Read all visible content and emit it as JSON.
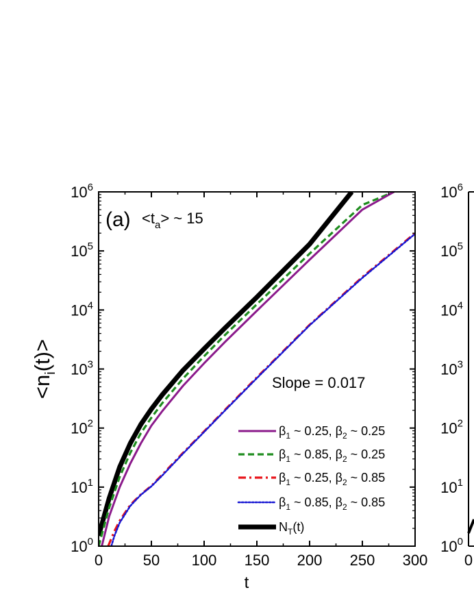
{
  "chart_data": [
    {
      "type": "line",
      "panel_label": "(a)",
      "panel_annotation": {
        "prefix": "<t",
        "subscript": "a",
        "suffix": "> ~ 15"
      },
      "slope_annotation": "Slope  = 0.017",
      "xlabel": "t",
      "ylabel": {
        "prefix": "<n",
        "subscript": "i",
        "suffix": "(t)>"
      },
      "xlim": [
        0,
        300
      ],
      "ylim_log10": [
        0,
        6
      ],
      "yscale": "log",
      "x_ticks": [
        0,
        50,
        100,
        150,
        200,
        250,
        300
      ],
      "x_tick_labels": [
        "0",
        "50",
        "100",
        "150",
        "200",
        "250",
        "300"
      ],
      "y_ticks_exp": [
        0,
        1,
        2,
        3,
        4,
        5,
        6
      ],
      "y_tick_base": "10",
      "grid": false,
      "legend_position": "bottom-right",
      "series": [
        {
          "name": "β1 ~ 0.25, β2 ~ 0.25",
          "legend": {
            "p1": "β",
            "s1": "1",
            "m": " ~ 0.25, ",
            "p2": "β",
            "s2": "2",
            "e": " ~ 0.25"
          },
          "color": "#8B1A8B",
          "style": "solid",
          "x": [
            3,
            10,
            20,
            30,
            40,
            50,
            60,
            80,
            100,
            120,
            150,
            200,
            250,
            280
          ],
          "y": [
            1,
            3.2,
            10,
            25,
            55,
            110,
            190,
            520,
            1250,
            2900,
            9700,
            71000,
            500000,
            1000000
          ]
        },
        {
          "name": "β1 ~ 0.85, β2 ~ 0.25",
          "legend": {
            "p1": "β",
            "s1": "1",
            "m": " ~ 0.85, ",
            "p2": "β",
            "s2": "2",
            "e": " ~ 0.25"
          },
          "color": "#1E8C1E",
          "style": "dashed",
          "x": [
            0,
            10,
            20,
            30,
            40,
            50,
            60,
            80,
            100,
            120,
            150,
            200,
            250,
            280
          ],
          "y": [
            1,
            4.5,
            15,
            38,
            82,
            150,
            260,
            690,
            1650,
            3800,
            12500,
            90000,
            600000,
            1000000
          ]
        },
        {
          "name": "β1 ~ 0.25, β2 ~ 0.85",
          "legend": {
            "p1": "β",
            "s1": "1",
            "m": " ~ 0.25, ",
            "p2": "β",
            "s2": "2",
            "e": " ~ 0.85"
          },
          "color": "#E8141A",
          "style": "dashdot",
          "x": [
            9,
            15,
            20,
            30,
            40,
            50,
            60,
            80,
            100,
            120,
            150,
            200,
            250,
            300
          ],
          "y": [
            1,
            1.8,
            2.7,
            5,
            7.5,
            10.5,
            16,
            38,
            88,
            205,
            720,
            5600,
            36000,
            200000
          ]
        },
        {
          "name": "β1 ~ 0.85, β2 ~ 0.85",
          "legend": {
            "p1": "β",
            "s1": "1",
            "m": " ~ 0.85, ",
            "p2": "β",
            "s2": "2",
            "e": " ~ 0.85"
          },
          "color": "#1414D2",
          "style": "dotted",
          "x": [
            12,
            15,
            20,
            30,
            40,
            50,
            60,
            80,
            100,
            120,
            150,
            200,
            250,
            300
          ],
          "y": [
            1,
            1.5,
            2.5,
            4.8,
            7.4,
            10.3,
            15.5,
            37,
            86,
            200,
            700,
            5500,
            35000,
            195000
          ]
        },
        {
          "name": "N_T(t)",
          "legend": {
            "p1": "N",
            "s1": "T",
            "m": "(t)",
            "p2": "",
            "s2": "",
            "e": ""
          },
          "color": "#000000",
          "style": "thick",
          "x": [
            0,
            10,
            20,
            30,
            40,
            50,
            60,
            80,
            100,
            120,
            150,
            200,
            240
          ],
          "y": [
            1.5,
            6.5,
            22,
            55,
            115,
            210,
            360,
            950,
            2200,
            5000,
            16500,
            130000,
            1000000
          ]
        }
      ]
    },
    {
      "type": "line",
      "panel": "right (partially visible)",
      "x_tick_labels": [
        "0"
      ],
      "y_ticks_exp": [
        0,
        1,
        2,
        3,
        4,
        5,
        6
      ],
      "y_tick_base": "10",
      "yscale": "log"
    }
  ]
}
